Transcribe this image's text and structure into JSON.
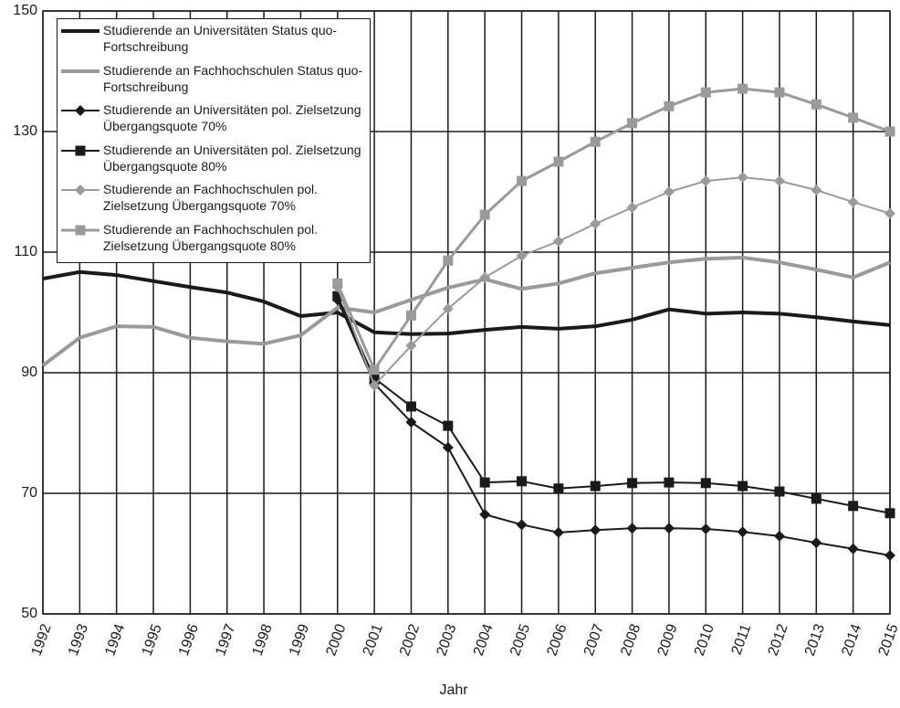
{
  "chart_data": {
    "type": "line",
    "x_label": "Jahr",
    "x": [
      1992,
      1993,
      1994,
      1995,
      1996,
      1997,
      1998,
      1999,
      2000,
      2001,
      2002,
      2003,
      2004,
      2005,
      2006,
      2007,
      2008,
      2009,
      2010,
      2011,
      2012,
      2013,
      2014,
      2015
    ],
    "xlim": [
      1992,
      2015
    ],
    "xticks": [
      1992,
      1993,
      1994,
      1995,
      1996,
      1997,
      1998,
      1999,
      2000,
      2001,
      2002,
      2003,
      2004,
      2005,
      2006,
      2007,
      2008,
      2009,
      2010,
      2011,
      2012,
      2013,
      2014,
      2015
    ],
    "ylim": [
      50,
      150
    ],
    "yticks": [
      50,
      70,
      90,
      110,
      130,
      150
    ],
    "grid": true,
    "legend": "upper left",
    "series": [
      {
        "name": "Studierende an Universitäten Status quo-Fortschreibung",
        "color": "#1a1a1a",
        "line_width": 4,
        "marker": "none",
        "values": [
          105.6,
          106.7,
          106.2,
          105.2,
          104.2,
          103.3,
          101.8,
          99.4,
          100,
          96.7,
          96.4,
          96.5,
          97.1,
          97.6,
          97.3,
          97.7,
          98.8,
          100.5,
          99.8,
          100,
          99.8,
          99.2,
          98.5,
          97.9
        ]
      },
      {
        "name": "Studierende an Fachhochschulen Status quo-Fortschreibung",
        "color": "#9a9a9a",
        "line_width": 4,
        "marker": "none",
        "values": [
          91.2,
          95.8,
          97.7,
          97.6,
          95.8,
          95.2,
          94.8,
          96.2,
          100.8,
          100,
          102.1,
          104.1,
          105.5,
          103.9,
          104.8,
          106.5,
          107.4,
          108.3,
          108.9,
          109.1,
          108.3,
          107.1,
          105.8,
          108.3
        ]
      },
      {
        "name": "Studierende an Universitäten pol. Zielsetzung Übergangsquote 70%",
        "color": "#1a1a1a",
        "line_width": 2,
        "marker": "diamond",
        "values": [
          null,
          null,
          null,
          null,
          null,
          null,
          null,
          null,
          102.1,
          88.2,
          81.8,
          77.6,
          66.5,
          64.8,
          63.5,
          63.9,
          64.2,
          64.2,
          64.1,
          63.6,
          62.9,
          61.8,
          60.8,
          59.7
        ]
      },
      {
        "name": "Studierende an Universitäten pol. Zielsetzung Übergangsquote 80%",
        "color": "#1a1a1a",
        "line_width": 2,
        "marker": "square",
        "values": [
          null,
          null,
          null,
          null,
          null,
          null,
          null,
          null,
          102.7,
          89.1,
          84.4,
          81.2,
          71.8,
          72,
          70.8,
          71.2,
          71.7,
          71.8,
          71.7,
          71.2,
          70.3,
          69.1,
          67.9,
          66.7
        ]
      },
      {
        "name": "Studierende an Fachhochschulen pol. Zielsetzung Übergangsquote 70%",
        "color": "#9a9a9a",
        "line_width": 2,
        "marker": "diamond",
        "values": [
          null,
          null,
          null,
          null,
          null,
          null,
          null,
          null,
          104.2,
          87.9,
          94.5,
          100.6,
          105.8,
          109.4,
          111.8,
          114.7,
          117.4,
          120,
          121.8,
          122.4,
          121.8,
          120.3,
          118.3,
          116.4
        ]
      },
      {
        "name": "Studierende an Fachhochschulen pol. Zielsetzung Übergangsquote 80%",
        "color": "#9a9a9a",
        "line_width": 3,
        "marker": "square",
        "values": [
          null,
          null,
          null,
          null,
          null,
          null,
          null,
          null,
          104.8,
          90.5,
          99.5,
          108.6,
          116.2,
          121.8,
          125,
          128.3,
          131.4,
          134.2,
          136.5,
          137.1,
          136.5,
          134.5,
          132.3,
          130
        ]
      }
    ]
  }
}
